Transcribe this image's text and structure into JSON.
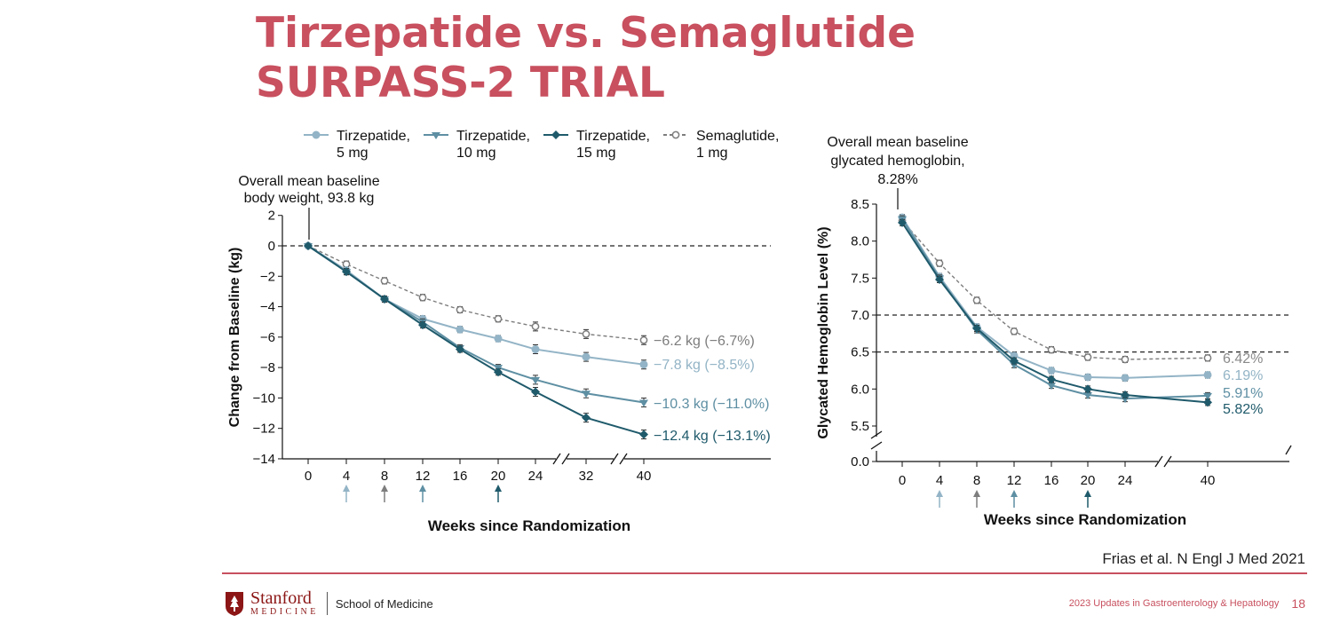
{
  "slide": {
    "title_line1": "Tirzepatide vs. Semaglutide",
    "title_line2": "SURPASS-2 TRIAL",
    "citation": "Frias et al. N Engl J Med 2021",
    "footer_conference": "2023 Updates in Gastroenterology & Hepatology",
    "page_number": "18",
    "logo_name": "Stanford",
    "logo_sub": "MEDICINE",
    "school": "School of Medicine"
  },
  "colors": {
    "title": "#c8505f",
    "tirz5": "#93b4c6",
    "tirz10": "#5e8fa3",
    "tirz15": "#1f5a6b",
    "sema": "#7d7d7d"
  },
  "chart_data": [
    {
      "type": "line",
      "ylabel": "Change from Baseline (kg)",
      "xlabel": "Weeks since Randomization",
      "baseline_annotation": [
        "Overall mean baseline",
        "body weight, 93.8 kg"
      ],
      "ylim": [
        -14,
        2
      ],
      "yticks": [
        2,
        0,
        -2,
        -4,
        -6,
        -8,
        -10,
        -12,
        -14
      ],
      "x": [
        0,
        4,
        8,
        12,
        16,
        20,
        24,
        32,
        40
      ],
      "x_axis_break": true,
      "reference_lines": [
        0
      ],
      "arrow_weeks": [
        4,
        8,
        12,
        20
      ],
      "legend": {
        "placement": "top"
      },
      "series": [
        {
          "name": "Tirzepatide, 5 mg",
          "values": [
            0,
            -1.6,
            -3.5,
            -4.8,
            -5.5,
            -6.1,
            -6.8,
            -7.3,
            -7.8
          ],
          "end_label": "−7.8 kg (−8.5%)"
        },
        {
          "name": "Tirzepatide, 10 mg",
          "values": [
            0,
            -1.7,
            -3.5,
            -5.0,
            -6.7,
            -8.0,
            -8.8,
            -9.7,
            -10.3
          ],
          "end_label": "−10.3 kg (−11.0%)"
        },
        {
          "name": "Tirzepatide, 15 mg",
          "values": [
            0,
            -1.7,
            -3.5,
            -5.2,
            -6.8,
            -8.3,
            -9.6,
            -11.3,
            -12.4
          ],
          "end_label": "−12.4 kg (−13.1%)"
        },
        {
          "name": "Semaglutide, 1 mg",
          "values": [
            0,
            -1.2,
            -2.3,
            -3.4,
            -4.2,
            -4.8,
            -5.3,
            -5.8,
            -6.2
          ],
          "end_label": "−6.2 kg (−6.7%)"
        }
      ]
    },
    {
      "type": "line",
      "ylabel": "Glycated Hemoglobin Level (%)",
      "xlabel": "Weeks since Randomization",
      "baseline_annotation": [
        "Overall mean baseline",
        "glycated hemoglobin,",
        "8.28%"
      ],
      "ylim": [
        5.5,
        8.5
      ],
      "yticks": [
        "8.5",
        "8.0",
        "7.5",
        "7.0",
        "6.5",
        "6.0",
        "5.5",
        "0.0"
      ],
      "x": [
        0,
        4,
        8,
        12,
        16,
        20,
        24,
        40
      ],
      "x_axis_break": true,
      "y_axis_break": true,
      "reference_lines": [
        7.0,
        6.5
      ],
      "arrow_weeks": [
        4,
        8,
        12,
        20
      ],
      "series": [
        {
          "name": "Tirzepatide, 5 mg",
          "values": [
            8.32,
            7.52,
            6.84,
            6.45,
            6.25,
            6.16,
            6.15,
            6.19
          ],
          "end_label": "6.19%"
        },
        {
          "name": "Tirzepatide, 10 mg",
          "values": [
            8.3,
            7.5,
            6.8,
            6.33,
            6.05,
            5.92,
            5.87,
            5.91
          ],
          "end_label": "5.91%"
        },
        {
          "name": "Tirzepatide, 15 mg",
          "values": [
            8.25,
            7.48,
            6.82,
            6.38,
            6.13,
            6.0,
            5.92,
            5.82
          ],
          "end_label": "5.82%"
        },
        {
          "name": "Semaglutide, 1 mg",
          "values": [
            8.28,
            7.7,
            7.2,
            6.78,
            6.53,
            6.43,
            6.4,
            6.42
          ],
          "end_label": "6.42%"
        }
      ]
    }
  ]
}
